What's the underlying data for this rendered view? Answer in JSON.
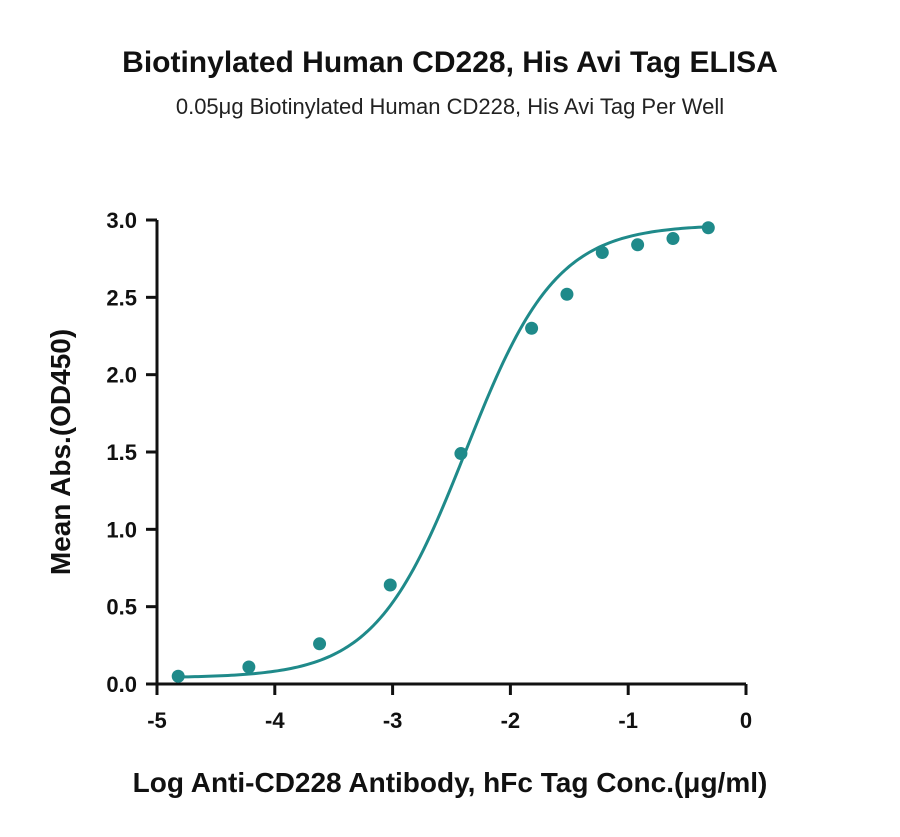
{
  "colors": {
    "series": "#1f8a8a",
    "axis": "#111111"
  },
  "chart_data": {
    "type": "scatter",
    "title": "Biotinylated Human CD228, His Avi Tag ELISA",
    "subtitle": "0.05μg Biotinylated Human CD228, His Avi Tag Per Well",
    "xlabel": "Log Anti-CD228 Antibody, hFc Tag Conc.(μg/ml)",
    "ylabel": "Mean Abs.(OD450)",
    "xlim": [
      -5,
      0
    ],
    "ylim": [
      0,
      3.0
    ],
    "x_ticks": [
      -5,
      -4,
      -3,
      -2,
      -1,
      0
    ],
    "x_tick_labels": [
      "-5",
      "-4",
      "-3",
      "-2",
      "-1",
      "0"
    ],
    "y_ticks": [
      0,
      0.5,
      1.0,
      1.5,
      2.0,
      2.5,
      3.0
    ],
    "y_tick_labels": [
      "0.0",
      "0.5",
      "1.0",
      "1.5",
      "2.0",
      "2.5",
      "3.0"
    ],
    "grid": false,
    "series": [
      {
        "points": [
          {
            "x": -4.82,
            "y": 0.05
          },
          {
            "x": -4.22,
            "y": 0.11
          },
          {
            "x": -3.62,
            "y": 0.26
          },
          {
            "x": -3.02,
            "y": 0.64
          },
          {
            "x": -2.42,
            "y": 1.49
          },
          {
            "x": -1.82,
            "y": 2.3
          },
          {
            "x": -1.52,
            "y": 2.52
          },
          {
            "x": -1.22,
            "y": 2.79
          },
          {
            "x": -0.92,
            "y": 2.84
          },
          {
            "x": -0.62,
            "y": 2.88
          },
          {
            "x": -0.32,
            "y": 2.95
          }
        ],
        "fit": {
          "model": "4PL",
          "bottom": 0.04,
          "top": 2.97,
          "logEC50": -2.38,
          "hill": 1.13
        }
      }
    ]
  }
}
